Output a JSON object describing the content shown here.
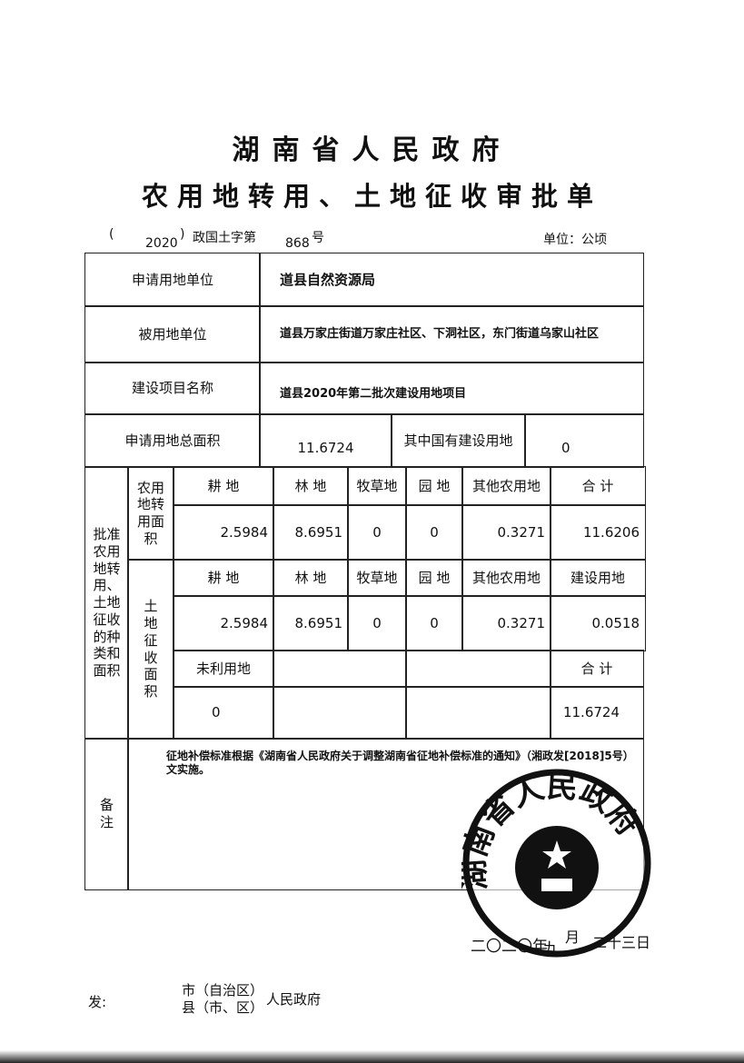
{
  "title_line1": "湖南省人民政府",
  "title_line2": "农用地转用、土地征收审批单",
  "doc_number": {
    "open_paren": "(",
    "year": "2020",
    "close_paren": ")",
    "prefix": "政国土字第",
    "number": "868",
    "suffix": "号"
  },
  "unit": "单位：公顷",
  "rows": {
    "applicant_label": "申请用地单位",
    "applicant_value": "道县自然资源局",
    "land_owner_label": "被用地单位",
    "land_owner_value": "道县万家庄街道万家庄社区、下洞社区，东门街道乌家山社区",
    "project_label": "建设项目名称",
    "project_value": "道县2020年第二批次建设用地项目",
    "total_area_label": "申请用地总面积",
    "total_area_value": "11.6724",
    "state_owned_label": "其中国有建设用地",
    "state_owned_value": "0"
  },
  "approval": {
    "section_label": "批准农用地转用、土地征收的种类和面积",
    "conversion_label": "农用地转用面积",
    "conversion_headers": [
      "耕 地",
      "林 地",
      "牧草地",
      "园 地",
      "其他农用地",
      "合 计"
    ],
    "conversion_values": [
      "2.5984",
      "8.6951",
      "0",
      "0",
      "0.3271",
      "11.6206"
    ],
    "expropriation_label": "土地征收面积",
    "expropriation_headers": [
      "耕 地",
      "林 地",
      "牧草地",
      "园 地",
      "其他农用地",
      "建设用地"
    ],
    "expropriation_values": [
      "2.5984",
      "8.6951",
      "0",
      "0",
      "0.3271",
      "0.0518"
    ],
    "unused_label": "未利用地",
    "unused_value": "0",
    "total_label": "合 计",
    "total_value": "11.6724"
  },
  "remarks": {
    "label": "备 注",
    "text": "征地补偿标准根据《湖南省人民政府关于调整湖南省征地补偿标准的通知》（湘政发[2018]5号）文实施。"
  },
  "seal": {
    "text": "湖南省人民政府"
  },
  "date": {
    "year": "二〇二〇年",
    "month_num": "九",
    "month": "月",
    "day": "二十三日"
  },
  "issue": {
    "label": "发:",
    "line1": "市（自治区）",
    "line2": "县（市、区）",
    "suffix": "人民政府"
  }
}
